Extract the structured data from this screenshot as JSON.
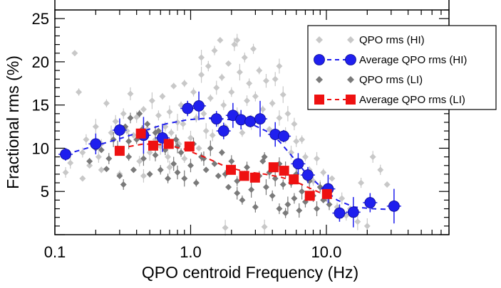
{
  "chart_data": {
    "type": "scatter",
    "xlabel": "QPO centroid Frequency (Hz)",
    "ylabel": "Fractional rms (%)",
    "x_scale": "log",
    "xlim": [
      0.1,
      80
    ],
    "ylim": [
      0,
      26
    ],
    "x_ticks": [
      {
        "value": 0.1,
        "label": "0.1"
      },
      {
        "value": 1.0,
        "label": "1.0"
      },
      {
        "value": 10.0,
        "label": "10.0"
      }
    ],
    "y_ticks": [
      {
        "value": 5,
        "label": "5"
      },
      {
        "value": 10,
        "label": "10"
      },
      {
        "value": 15,
        "label": "15"
      },
      {
        "value": 20,
        "label": "20"
      },
      {
        "value": 25,
        "label": "25"
      }
    ],
    "legend_position": "top-right",
    "series": [
      {
        "name": "QPO rms (HI)",
        "marker": "diamond",
        "color": "#c8c8c8",
        "points": [
          [
            0.12,
            7.2
          ],
          [
            0.13,
            8.3
          ],
          [
            0.14,
            21.0
          ],
          [
            0.15,
            16.5
          ],
          [
            0.16,
            9.5
          ],
          [
            0.17,
            11.0
          ],
          [
            0.18,
            8.0
          ],
          [
            0.2,
            12.5
          ],
          [
            0.21,
            9.0
          ],
          [
            0.22,
            10.5
          ],
          [
            0.24,
            15.2
          ],
          [
            0.26,
            11.8
          ],
          [
            0.28,
            13.1
          ],
          [
            0.3,
            9.8
          ],
          [
            0.32,
            14.0
          ],
          [
            0.34,
            12.0
          ],
          [
            0.36,
            16.3
          ],
          [
            0.38,
            11.5
          ],
          [
            0.4,
            13.6
          ],
          [
            0.42,
            8.5
          ],
          [
            0.45,
            14.5
          ],
          [
            0.48,
            12.2
          ],
          [
            0.5,
            9.5
          ],
          [
            0.52,
            15.5
          ],
          [
            0.55,
            11.0
          ],
          [
            0.58,
            13.8
          ],
          [
            0.6,
            10.2
          ],
          [
            0.62,
            16.0
          ],
          [
            0.65,
            12.5
          ],
          [
            0.68,
            9.0
          ],
          [
            0.7,
            14.2
          ],
          [
            0.72,
            11.8
          ],
          [
            0.75,
            17.2
          ],
          [
            0.8,
            13.0
          ],
          [
            0.82,
            10.5
          ],
          [
            0.85,
            15.0
          ],
          [
            0.88,
            12.8
          ],
          [
            0.9,
            8.8
          ],
          [
            0.95,
            14.8
          ],
          [
            1.0,
            11.2
          ],
          [
            1.05,
            16.5
          ],
          [
            1.1,
            13.5
          ],
          [
            1.15,
            10.0
          ],
          [
            1.2,
            18.5
          ],
          [
            1.25,
            14.0
          ],
          [
            1.3,
            12.0
          ],
          [
            1.35,
            19.5
          ],
          [
            1.4,
            15.8
          ],
          [
            1.45,
            11.5
          ],
          [
            1.5,
            21.3
          ],
          [
            1.55,
            17.0
          ],
          [
            1.6,
            13.2
          ],
          [
            1.65,
            22.5
          ],
          [
            1.7,
            18.2
          ],
          [
            1.75,
            15.0
          ],
          [
            1.8,
            12.5
          ],
          [
            1.9,
            19.8
          ],
          [
            2.0,
            16.5
          ],
          [
            2.1,
            22.0
          ],
          [
            2.2,
            14.0
          ],
          [
            2.3,
            18.8
          ],
          [
            2.4,
            11.8
          ],
          [
            2.5,
            20.5
          ],
          [
            2.6,
            15.5
          ],
          [
            2.7,
            17.5
          ],
          [
            2.8,
            13.0
          ],
          [
            2.9,
            21.5
          ],
          [
            3.0,
            16.0
          ],
          [
            3.2,
            19.0
          ],
          [
            3.4,
            14.5
          ],
          [
            3.6,
            17.8
          ],
          [
            3.8,
            12.2
          ],
          [
            4.0,
            15.2
          ],
          [
            4.2,
            18.0
          ],
          [
            4.5,
            13.5
          ],
          [
            4.8,
            16.2
          ],
          [
            5.0,
            11.5
          ],
          [
            5.2,
            14.0
          ],
          [
            5.5,
            9.5
          ],
          [
            5.8,
            12.8
          ],
          [
            6.0,
            10.8
          ],
          [
            6.3,
            8.2
          ],
          [
            6.6,
            11.0
          ],
          [
            7.0,
            9.0
          ],
          [
            7.5,
            7.5
          ],
          [
            8.0,
            6.2
          ],
          [
            8.5,
            8.8
          ],
          [
            9.0,
            5.5
          ],
          [
            9.5,
            7.2
          ],
          [
            10.0,
            4.8
          ],
          [
            11.0,
            6.5
          ],
          [
            12.0,
            3.2
          ],
          [
            13.0,
            4.2
          ],
          [
            14.0,
            2.2
          ],
          [
            15.0,
            3.0
          ],
          [
            17.0,
            1.5
          ],
          [
            18.0,
            6.0
          ],
          [
            20.0,
            1.0
          ],
          [
            22.0,
            9.0
          ],
          [
            25.0,
            7.5
          ],
          [
            28.0,
            5.8
          ],
          [
            3.5,
            0.9
          ],
          [
            1.8,
            0.8
          ],
          [
            0.3,
            7.0
          ],
          [
            0.16,
            6.5
          ],
          [
            0.22,
            7.5
          ],
          [
            0.45,
            6.8
          ],
          [
            0.7,
            7.8
          ],
          [
            2.2,
            22.5
          ],
          [
            1.2,
            20.5
          ],
          [
            0.9,
            17.5
          ],
          [
            4.5,
            19.5
          ]
        ]
      },
      {
        "name": "Average QPO rms (HI)",
        "marker": "circle",
        "color": "#1f1fee",
        "points": [
          [
            0.12,
            9.3
          ],
          [
            0.2,
            10.5
          ],
          [
            0.3,
            12.1
          ],
          [
            0.45,
            11.5
          ],
          [
            0.62,
            11.2
          ],
          [
            0.95,
            14.6
          ],
          [
            1.15,
            14.9
          ],
          [
            1.55,
            13.4
          ],
          [
            1.75,
            12.0
          ],
          [
            2.05,
            13.8
          ],
          [
            2.35,
            13.3
          ],
          [
            2.75,
            13.1
          ],
          [
            3.25,
            13.4
          ],
          [
            4.2,
            11.6
          ],
          [
            4.85,
            11.4
          ],
          [
            6.2,
            8.2
          ],
          [
            7.3,
            6.9
          ],
          [
            10.3,
            5.3
          ],
          [
            12.5,
            2.5
          ],
          [
            15.8,
            2.6
          ],
          [
            21.0,
            3.7
          ],
          [
            31.5,
            3.3
          ]
        ]
      },
      {
        "name": "QPO rms (LI)",
        "marker": "diamond",
        "color": "#7a7a7a",
        "points": [
          [
            0.18,
            8.5
          ],
          [
            0.2,
            10.0
          ],
          [
            0.22,
            9.8
          ],
          [
            0.24,
            7.6
          ],
          [
            0.25,
            8.8
          ],
          [
            0.27,
            11.0
          ],
          [
            0.29,
            10.0
          ],
          [
            0.3,
            6.8
          ],
          [
            0.32,
            5.8
          ],
          [
            0.33,
            12.5
          ],
          [
            0.35,
            9.0
          ],
          [
            0.36,
            13.5
          ],
          [
            0.38,
            7.5
          ],
          [
            0.4,
            11.0
          ],
          [
            0.42,
            14.0
          ],
          [
            0.44,
            12.2
          ],
          [
            0.45,
            8.8
          ],
          [
            0.48,
            12.8
          ],
          [
            0.5,
            7.0
          ],
          [
            0.52,
            10.5
          ],
          [
            0.55,
            9.2
          ],
          [
            0.58,
            12.0
          ],
          [
            0.6,
            7.5
          ],
          [
            0.62,
            11.5
          ],
          [
            0.65,
            9.8
          ],
          [
            0.68,
            6.5
          ],
          [
            0.7,
            10.8
          ],
          [
            0.75,
            8.2
          ],
          [
            0.78,
            11.0
          ],
          [
            0.8,
            7.2
          ],
          [
            0.85,
            9.5
          ],
          [
            0.9,
            6.5
          ],
          [
            1.0,
            8.0
          ],
          [
            1.05,
            10.5
          ],
          [
            1.1,
            6.0
          ],
          [
            1.2,
            9.0
          ],
          [
            1.3,
            7.5
          ],
          [
            1.4,
            10.0
          ],
          [
            1.5,
            8.2
          ],
          [
            1.6,
            6.8
          ],
          [
            1.7,
            9.5
          ],
          [
            1.8,
            7.0
          ],
          [
            1.9,
            5.5
          ],
          [
            2.0,
            8.5
          ],
          [
            2.2,
            6.2
          ],
          [
            2.4,
            4.0
          ],
          [
            2.6,
            7.8
          ],
          [
            2.8,
            5.2
          ],
          [
            3.0,
            3.2
          ],
          [
            3.2,
            6.8
          ],
          [
            3.4,
            8.5
          ],
          [
            3.6,
            5.5
          ],
          [
            3.8,
            7.2
          ],
          [
            4.0,
            4.5
          ],
          [
            4.2,
            6.5
          ],
          [
            4.5,
            8.2
          ],
          [
            4.8,
            5.8
          ],
          [
            5.0,
            7.5
          ],
          [
            5.2,
            3.5
          ],
          [
            5.5,
            6.0
          ],
          [
            5.8,
            4.2
          ],
          [
            6.0,
            7.0
          ],
          [
            6.3,
            2.8
          ],
          [
            6.6,
            5.0
          ],
          [
            7.0,
            3.8
          ],
          [
            7.5,
            6.2
          ],
          [
            8.0,
            4.5
          ],
          [
            8.5,
            3.0
          ],
          [
            9.0,
            5.5
          ],
          [
            9.5,
            4.0
          ],
          [
            10.0,
            4.8
          ],
          [
            10.5,
            3.5
          ],
          [
            2.2,
            4.8
          ],
          [
            3.5,
            9.0
          ],
          [
            0.55,
            11.8
          ],
          [
            1.25,
            8.8
          ],
          [
            4.5,
            3.0
          ],
          [
            5.0,
            2.5
          ],
          [
            0.35,
            10.8
          ],
          [
            0.8,
            10.2
          ]
        ]
      },
      {
        "name": "Average QPO rms (LI)",
        "marker": "square",
        "color": "#ee1111",
        "points": [
          [
            0.3,
            9.7
          ],
          [
            0.43,
            11.7
          ],
          [
            0.53,
            10.3
          ],
          [
            0.69,
            10.5
          ],
          [
            0.98,
            10.2
          ],
          [
            1.98,
            7.5
          ],
          [
            2.48,
            6.8
          ],
          [
            2.98,
            6.6
          ],
          [
            4.08,
            7.8
          ],
          [
            4.88,
            7.4
          ],
          [
            5.75,
            6.4
          ],
          [
            7.55,
            4.5
          ],
          [
            10.1,
            4.7
          ]
        ]
      }
    ],
    "trend_lines": [
      {
        "series": "Average QPO rms (HI)",
        "color": "#1f1fee",
        "style": "dashed",
        "points": [
          [
            0.12,
            9.3
          ],
          [
            0.2,
            10.3
          ],
          [
            0.3,
            11.1
          ],
          [
            0.45,
            12.0
          ],
          [
            0.65,
            12.8
          ],
          [
            0.95,
            13.3
          ],
          [
            1.4,
            13.5
          ],
          [
            2.0,
            13.3
          ],
          [
            2.8,
            12.8
          ],
          [
            3.6,
            12.0
          ],
          [
            4.5,
            10.8
          ],
          [
            5.5,
            9.2
          ],
          [
            7.0,
            7.2
          ],
          [
            9.0,
            5.6
          ],
          [
            12.0,
            4.0
          ],
          [
            16.0,
            3.2
          ],
          [
            22.0,
            3.0
          ],
          [
            31.5,
            2.9
          ]
        ]
      },
      {
        "series": "Average QPO rms (LI)",
        "color": "#ee1111",
        "style": "dashed",
        "points": [
          [
            0.3,
            10.0
          ],
          [
            0.45,
            10.5
          ],
          [
            0.65,
            10.4
          ],
          [
            0.9,
            9.9
          ],
          [
            1.3,
            8.9
          ],
          [
            1.8,
            7.9
          ],
          [
            2.5,
            7.3
          ],
          [
            3.5,
            7.0
          ],
          [
            4.5,
            6.7
          ],
          [
            5.8,
            6.2
          ],
          [
            7.5,
            5.4
          ],
          [
            10.1,
            4.5
          ]
        ]
      }
    ]
  }
}
